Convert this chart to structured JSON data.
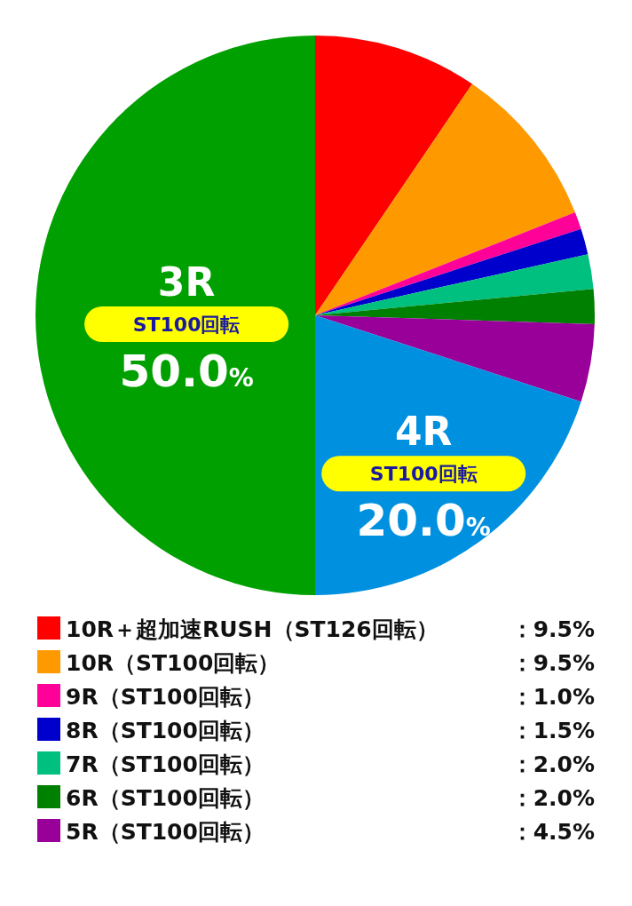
{
  "chart_data": {
    "type": "pie",
    "categories": [
      "10R＋超加速RUSH（ST126回転）",
      "10R（ST100回転）",
      "9R（ST100回転）",
      "8R（ST100回転）",
      "7R（ST100回転）",
      "6R（ST100回転）",
      "5R（ST100回転）",
      "4R",
      "3R"
    ],
    "values": [
      9.5,
      9.5,
      1.0,
      1.5,
      2.0,
      2.0,
      4.5,
      20.0,
      50.0
    ],
    "colors": [
      "#ff0000",
      "#ff9900",
      "#ff0099",
      "#0000cc",
      "#00c080",
      "#008000",
      "#990099",
      "#0090e0",
      "#00a000"
    ],
    "value_labels": [
      "：9.5%",
      "：9.5%",
      "：1.0%",
      "：1.5%",
      "：2.0%",
      "：2.0%",
      "：4.5%",
      "20.0%",
      "50.0%"
    ],
    "annotations": [
      "ST100回転",
      "ST100回転"
    ],
    "legend": "bottom"
  }
}
